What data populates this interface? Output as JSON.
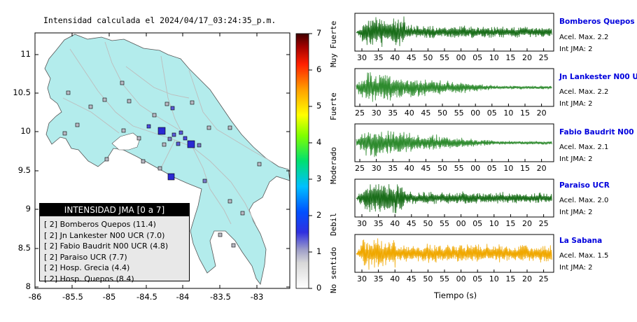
{
  "map": {
    "title": "Intensidad calculada el 2024/04/17_03:24:35_p.m.",
    "lon_ticks": [
      "-86",
      "-85.5",
      "-85",
      "-84.5",
      "-84",
      "-83.5",
      "-83"
    ],
    "lat_ticks": [
      "11",
      "10.5",
      "10",
      "9.5",
      "9",
      "8.5",
      "8"
    ],
    "colors": {
      "land": "#b3ecec",
      "roads": "#c0c0c0",
      "station_square": "#2a2ad2"
    }
  },
  "colorbar": {
    "ticks": [
      "0",
      "1",
      "2",
      "3",
      "4",
      "5",
      "6",
      "7"
    ],
    "labels": [
      "No sentido",
      "Debil",
      "Moderado",
      "Fuerte",
      "Muy Fuerte"
    ]
  },
  "legend": {
    "title": "INTENSIDAD JMA [0 a 7]",
    "items": [
      "[ 2]  Bomberos Quepos (11.4)",
      "[ 2]  Jn Lankester N00 UCR (7.0)",
      "[ 2]  Fabio Baudrit N00 UCR (4.8)",
      "[ 2]  Paraiso UCR (7.7)",
      "[ 2]  Hosp. Grecia (4.4)",
      "[ 2]  Hosp. Quepos (8.4)"
    ]
  },
  "waveforms": [
    {
      "name": "Bomberos Quepos",
      "accel": "Acel. Max. 2.2",
      "int": "Int JMA: 2",
      "ticks": [
        "30",
        "35",
        "40",
        "45",
        "50",
        "55",
        "00",
        "05",
        "10",
        "15",
        "20",
        "25"
      ],
      "color": "#1a6e1a"
    },
    {
      "name": "Jn Lankester N00 UCR",
      "accel": "Acel. Max. 2.2",
      "int": "Int JMA: 2",
      "ticks": [
        "25",
        "30",
        "35",
        "40",
        "45",
        "50",
        "55",
        "00",
        "05",
        "10",
        "15",
        "20"
      ],
      "color": "#2e8b2e"
    },
    {
      "name": "Fabio Baudrit N00 UCR",
      "accel": "Acel. Max. 2.1",
      "int": "Int JMA: 2",
      "ticks": [
        "25",
        "30",
        "35",
        "40",
        "45",
        "50",
        "55",
        "00",
        "05",
        "10",
        "15",
        "20"
      ],
      "color": "#2e8b2e"
    },
    {
      "name": "Paraiso UCR",
      "accel": "Acel. Max. 2.0",
      "int": "Int JMA: 2",
      "ticks": [
        "30",
        "35",
        "40",
        "45",
        "50",
        "55",
        "00",
        "05",
        "10",
        "15",
        "20",
        "25"
      ],
      "color": "#1a6e1a"
    },
    {
      "name": "La Sabana",
      "accel": "Acel. Max. 1.5",
      "int": "Int JMA: 2",
      "ticks": [
        "30",
        "35",
        "40",
        "45",
        "50",
        "55",
        "00",
        "05",
        "10",
        "15",
        "20",
        "25"
      ],
      "color": "#f0a800"
    }
  ],
  "xaxis_label": "Tiempo (s)"
}
